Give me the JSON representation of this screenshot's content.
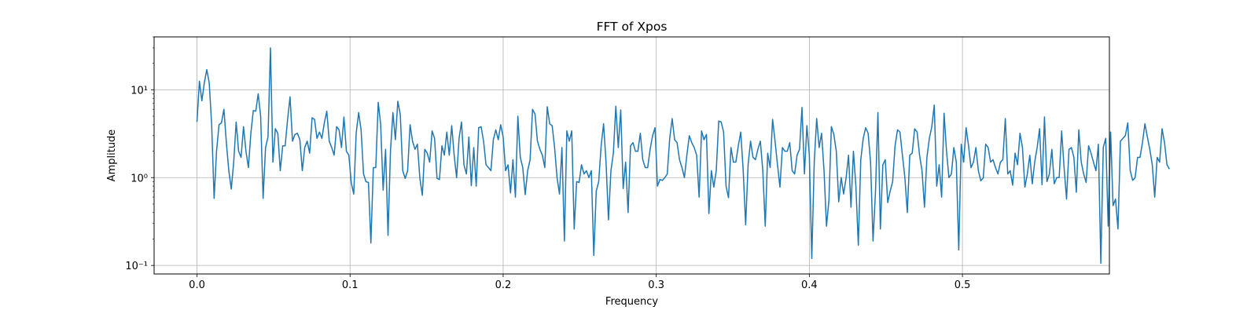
{
  "chart_data": {
    "type": "line",
    "title": "FFT of Xpos",
    "xlabel": "Frequency",
    "ylabel": "Amplitude",
    "xlim": [
      -0.028,
      0.596
    ],
    "ylim": [
      0.08,
      40
    ],
    "yscale": "log",
    "grid": true,
    "line_color": "#1f77b4",
    "xticks": [
      {
        "value": 0.0,
        "label": "0.0"
      },
      {
        "value": 0.1,
        "label": "0.1"
      },
      {
        "value": 0.2,
        "label": "0.2"
      },
      {
        "value": 0.3,
        "label": "0.3"
      },
      {
        "value": 0.4,
        "label": "0.4"
      },
      {
        "value": 0.5,
        "label": "0.5"
      }
    ],
    "yticks": [
      {
        "value": 0.1,
        "label": "10⁻¹"
      },
      {
        "value": 1,
        "label": "10⁰"
      },
      {
        "value": 10,
        "label": "10¹"
      }
    ],
    "series": [
      {
        "x_start": 0.0,
        "x_step": 0.0016,
        "values": [
          4.3,
          12.5,
          7.5,
          12,
          17,
          12,
          4,
          0.58,
          2,
          4,
          4.2,
          6,
          2.5,
          1.2,
          0.74,
          1.5,
          4.3,
          2,
          1.7,
          3.8,
          2,
          1.3,
          3.2,
          5.8,
          5.7,
          9,
          5,
          0.58,
          2.2,
          2.9,
          30,
          1.5,
          3.6,
          3.2,
          1.2,
          2.3,
          2.3,
          4.6,
          8.3,
          2.6,
          3.1,
          3.2,
          2.7,
          1.2,
          2.2,
          2.6,
          1.9,
          4.8,
          4.6,
          2.8,
          3.3,
          2.8,
          4.2,
          5.7,
          2.6,
          2.2,
          1.8,
          3.8,
          3.5,
          2.2,
          4.9,
          2,
          1.8,
          0.87,
          0.65,
          3.2,
          5.5,
          3.5,
          1.1,
          0.9,
          0.88,
          0.18,
          1.3,
          1.3,
          7.2,
          4,
          0.72,
          2.1,
          0.22,
          2,
          5.5,
          2.7,
          7.4,
          5.2,
          1.2,
          0.98,
          1.2,
          4,
          2.6,
          2.1,
          2.4,
          0.98,
          0.63,
          2.1,
          1.9,
          1.5,
          3.4,
          2.8,
          0.98,
          0.95,
          2.3,
          1.8,
          3.3,
          1.8,
          3.9,
          1.8,
          1,
          2.8,
          4.3,
          1.4,
          1.1,
          2.9,
          0.81,
          2.2,
          0.8,
          3.7,
          3.8,
          2.6,
          1.4,
          1.3,
          1.2,
          2.7,
          3.5,
          2.7,
          4,
          2.9,
          1.2,
          1.4,
          0.67,
          1.6,
          0.6,
          5,
          1.7,
          1.3,
          0.64,
          1.2,
          1.6,
          6,
          5.3,
          2.6,
          2.1,
          1.8,
          1.3,
          6.4,
          4.1,
          3.9,
          2.2,
          1,
          0.65,
          2.2,
          0.19,
          3.4,
          2.6,
          3.4,
          0.26,
          0.9,
          0.88,
          1.4,
          1.1,
          1.2,
          1,
          1.2,
          0.13,
          0.7,
          0.9,
          2.3,
          4.1,
          1.5,
          0.33,
          1.2,
          1.9,
          6.5,
          2.2,
          5.9,
          0.75,
          1.5,
          0.4,
          2.3,
          2.5,
          2,
          2,
          3.2,
          1.6,
          1.3,
          1.3,
          2.1,
          3,
          3.7,
          0.8,
          0.95,
          0.93,
          1,
          1.1,
          2.8,
          4.7,
          2.7,
          2.5,
          1.6,
          1.3,
          1,
          1.8,
          3,
          2.5,
          2.2,
          1.8,
          0.6,
          3.4,
          2.7,
          3.1,
          0.39,
          1.2,
          0.78,
          1.2,
          4.4,
          4.3,
          3.3,
          0.8,
          0.59,
          2.2,
          1.5,
          1.5,
          2.3,
          3.3,
          1.2,
          0.29,
          1.4,
          2.6,
          1.7,
          1.6,
          2.1,
          2.6,
          1.2,
          0.28,
          1.9,
          1.3,
          4.6,
          2.6,
          1.4,
          0.78,
          2.2,
          2,
          2,
          2.5,
          1.2,
          1.1,
          1.8,
          2.1,
          6.3,
          1.1,
          3.9,
          1.8,
          0.12,
          1.5,
          4.7,
          2.2,
          3.2,
          1.2,
          0.28,
          0.55,
          3.8,
          3.1,
          2,
          0.53,
          1,
          0.65,
          0.99,
          1.8,
          0.46,
          2,
          0.8,
          0.17,
          1.6,
          2.8,
          3.7,
          3.2,
          1.5,
          0.19,
          0.68,
          5.5,
          0.26,
          1.4,
          1.6,
          0.52,
          0.7,
          0.9,
          2.3,
          3.5,
          3.3,
          1.8,
          1,
          0.4,
          1.8,
          1.9,
          3.6,
          3.3,
          1.8,
          1.2,
          0.46,
          1.7,
          2.8,
          3.8,
          6.7,
          0.8,
          1.4,
          0.6,
          5.4,
          2,
          1,
          1.1,
          2.2,
          1.5,
          0.15,
          2.4,
          1.5,
          3.7,
          2.3,
          1.3,
          1.5,
          2.2,
          1.2,
          0.92,
          0.99,
          2.4,
          2.2,
          1.5,
          1.6,
          1.3,
          1.1,
          1.5,
          1.6,
          4.7,
          1.1,
          1.2,
          0.82,
          1.9,
          1.4,
          3.2,
          2.2,
          0.78,
          1.1,
          1.8,
          0.85,
          1.5,
          2.2,
          3.6,
          0.83,
          4.9,
          0.9,
          1.1,
          2.1,
          0.85,
          1,
          1,
          3.4,
          1.3,
          0.57,
          2.1,
          2.2,
          1.7,
          0.68,
          3.5,
          1.5,
          1.1,
          0.88,
          2.3,
          1.9,
          1.5,
          1.2,
          2.4,
          0.106,
          2.2,
          2.8,
          0.28,
          3.3,
          0.48,
          0.57,
          0.26,
          2.6,
          2.8,
          3,
          4.2,
          1.2,
          0.93,
          1,
          1.7,
          1.7,
          2.5,
          4.1,
          2.9,
          2.1,
          1.4,
          0.6,
          1.7,
          1.5,
          3.6,
          2.5,
          1.4,
          1.25
        ]
      }
    ]
  }
}
